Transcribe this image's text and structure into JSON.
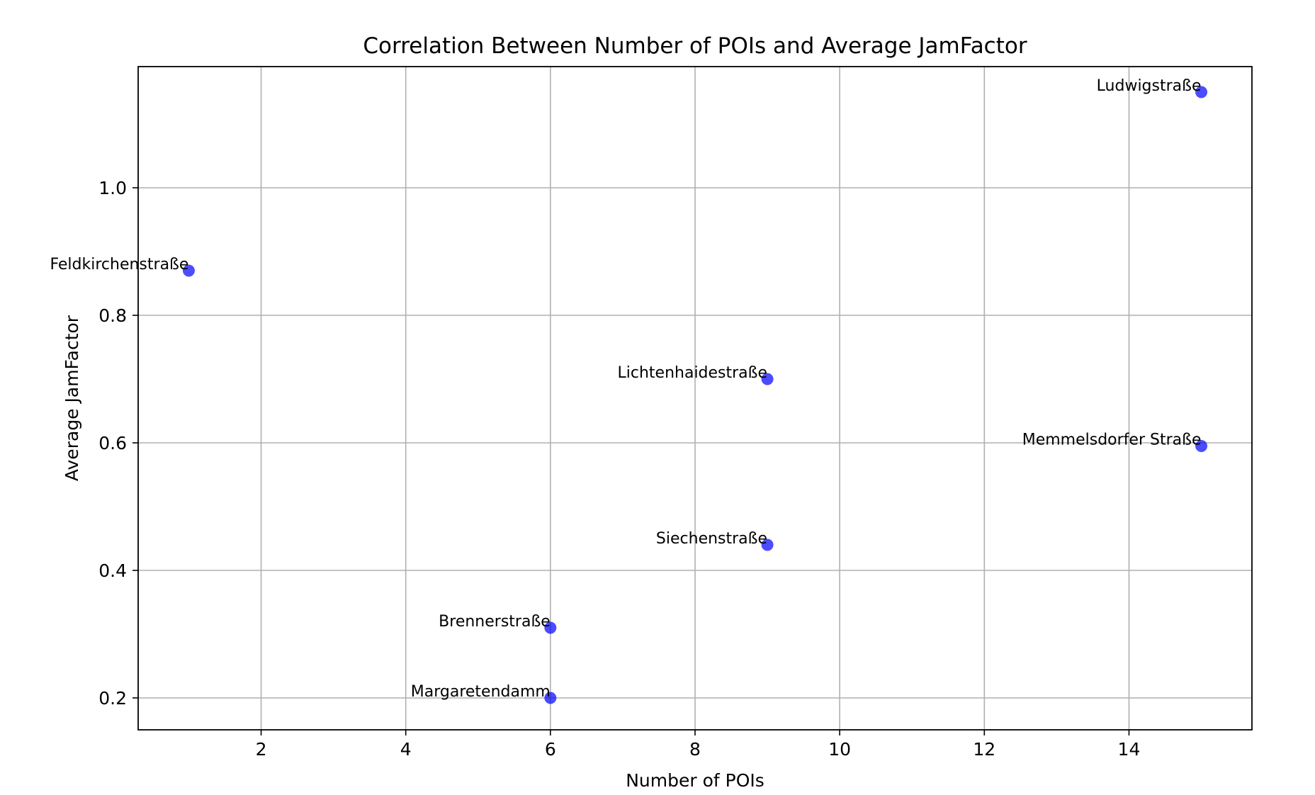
{
  "chart_data": {
    "type": "scatter",
    "title": "Correlation Between Number of POIs and Average JamFactor",
    "xlabel": "Number of POIs",
    "ylabel": "Average JamFactor",
    "xlim": [
      0.3,
      15.7
    ],
    "ylim": [
      0.15,
      1.19
    ],
    "xticks": [
      2,
      4,
      6,
      8,
      10,
      12,
      14
    ],
    "yticks": [
      0.2,
      0.4,
      0.6,
      0.8,
      1.0
    ],
    "xtick_labels": [
      "2",
      "4",
      "6",
      "8",
      "10",
      "12",
      "14"
    ],
    "ytick_labels": [
      "0.2",
      "0.4",
      "0.6",
      "0.8",
      "1.0"
    ],
    "grid": true,
    "marker_color": "#0000ff",
    "marker_alpha": 0.7,
    "points": [
      {
        "label": "Ludwigstraße",
        "x": 15,
        "y": 1.15
      },
      {
        "label": "Feldkirchenstraße",
        "x": 1,
        "y": 0.87
      },
      {
        "label": "Lichtenhaidestraße",
        "x": 9,
        "y": 0.7
      },
      {
        "label": "Memmelsdorfer Straße",
        "x": 15,
        "y": 0.595
      },
      {
        "label": "Siechenstraße",
        "x": 9,
        "y": 0.44
      },
      {
        "label": "Brennerstraße",
        "x": 6,
        "y": 0.31
      },
      {
        "label": "Margaretendamm",
        "x": 6,
        "y": 0.2
      }
    ]
  }
}
